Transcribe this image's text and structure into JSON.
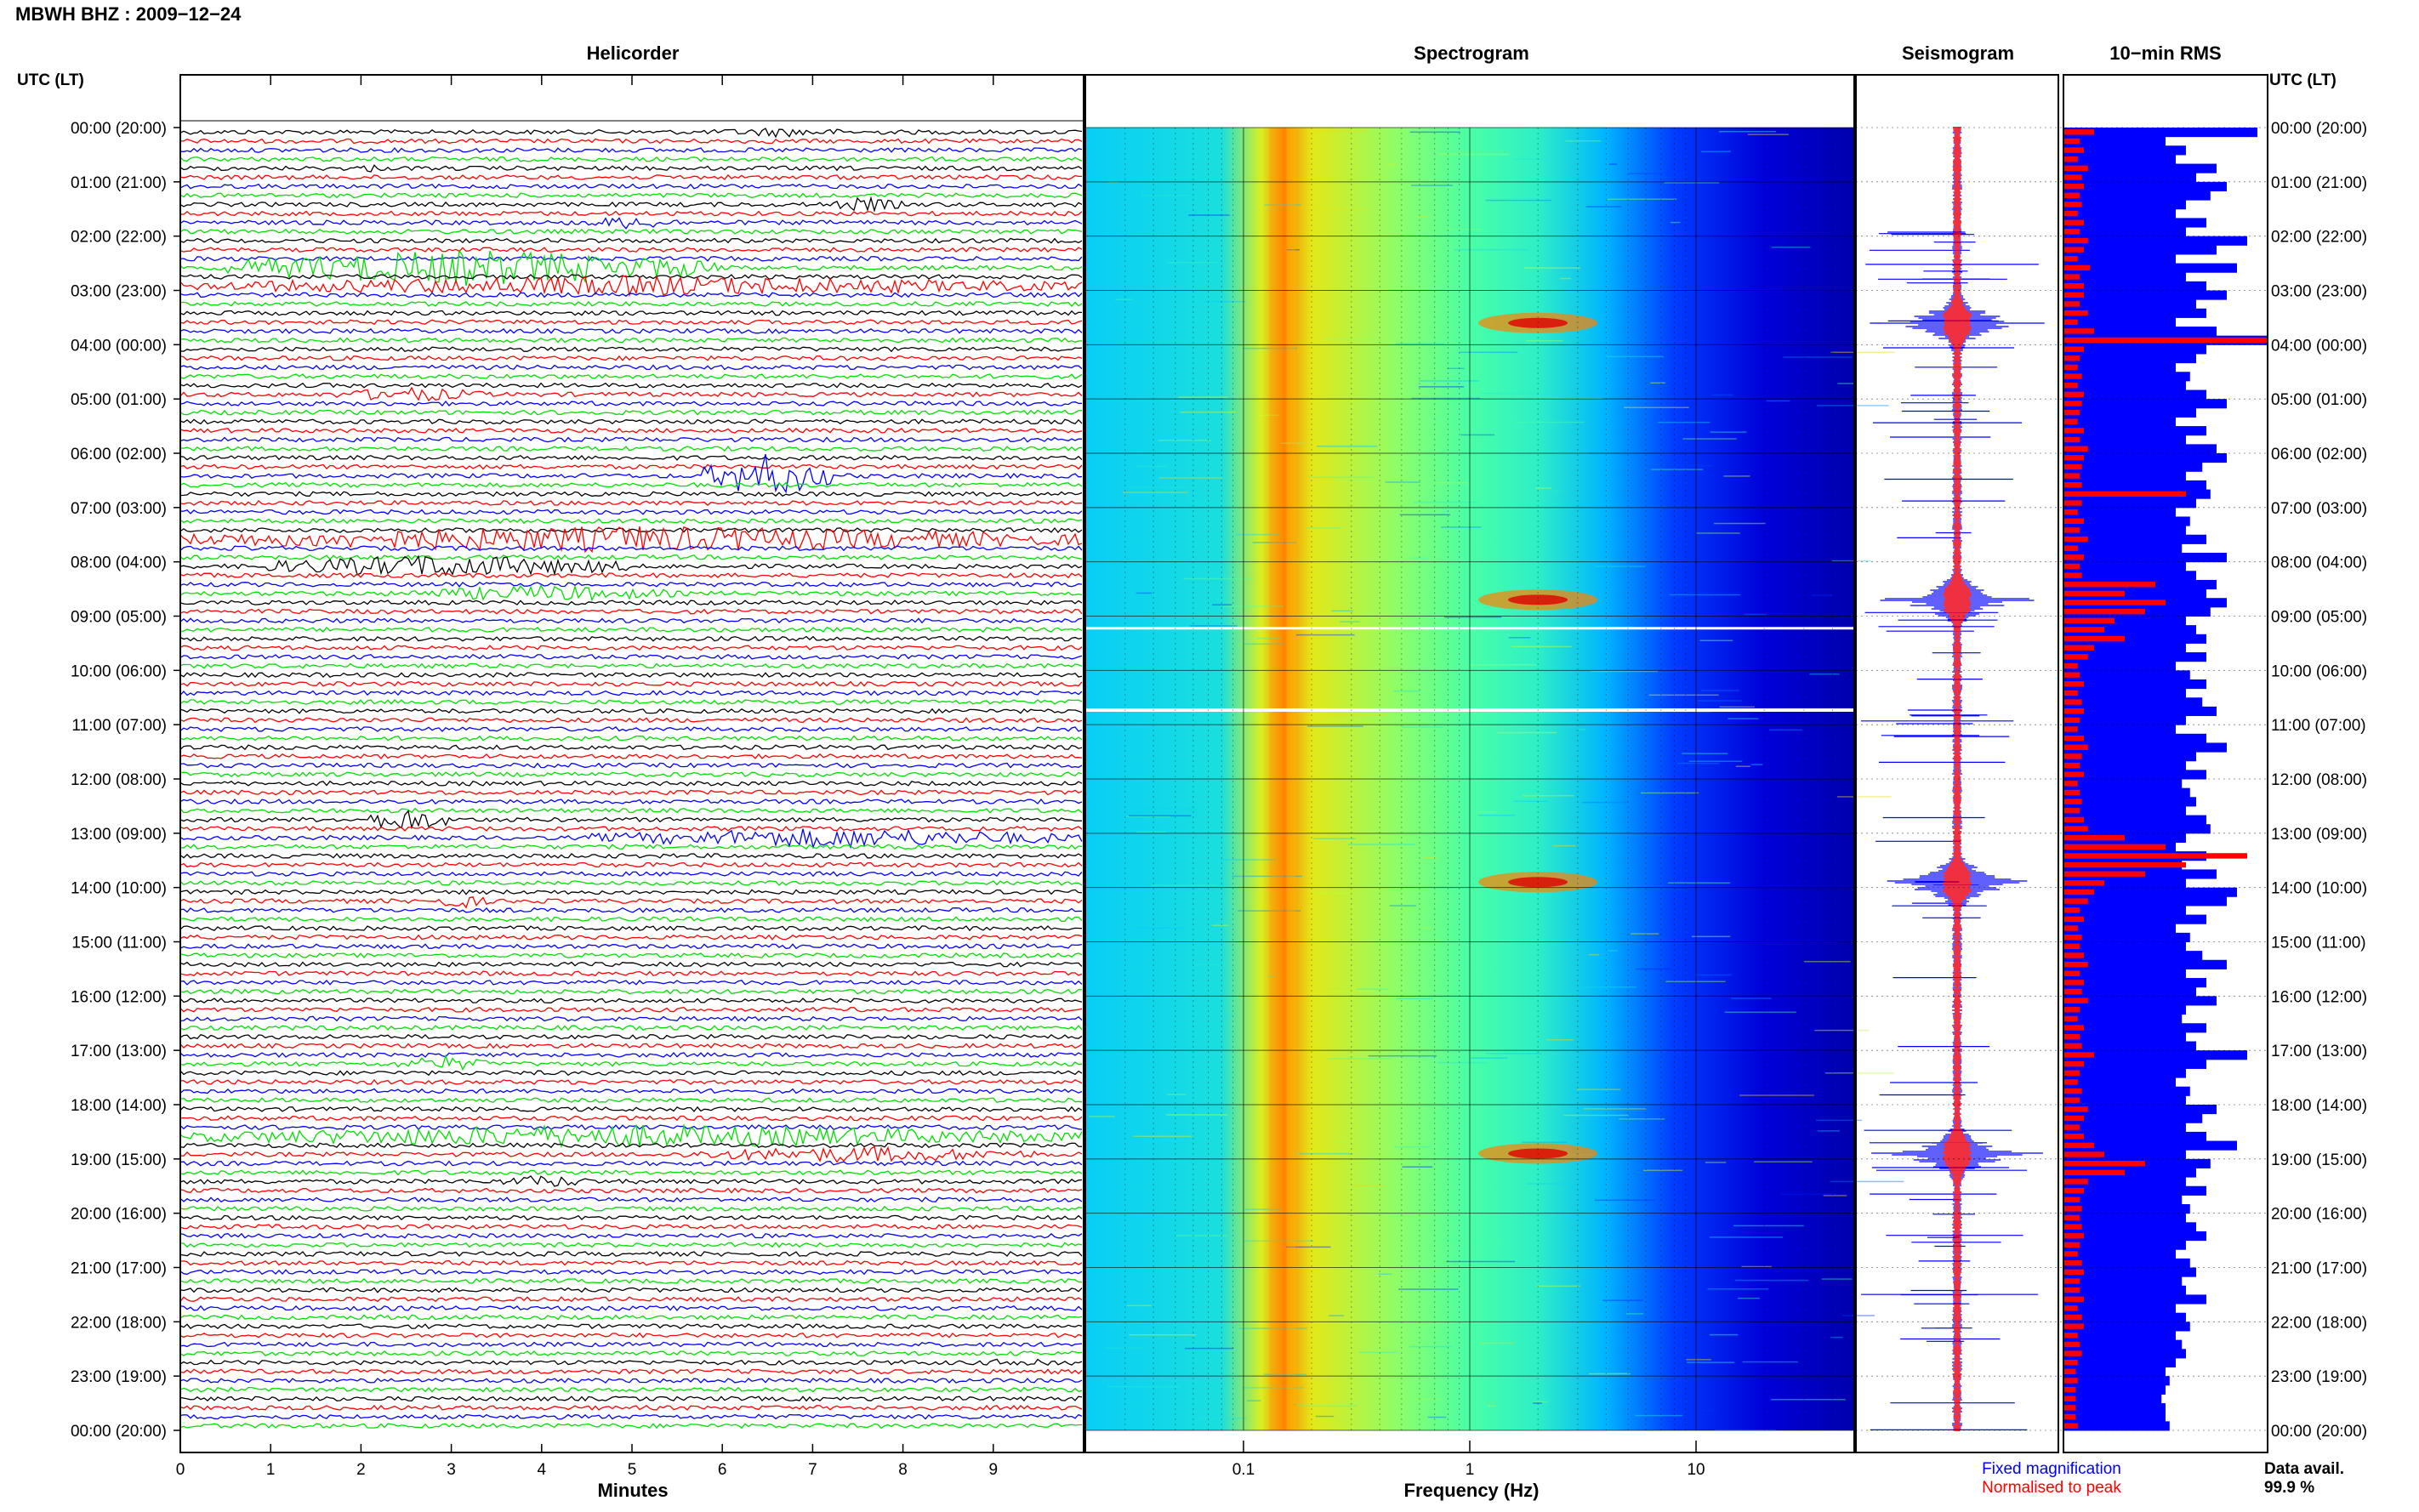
{
  "header": {
    "station_title": "MBWH BHZ : 2009−12−24"
  },
  "panels": {
    "helicorder": "Helicorder",
    "spectrogram": "Spectrogram",
    "seismogram": "Seismogram",
    "rms": "10−min RMS"
  },
  "axis_labels": {
    "time_left": "UTC (LT)",
    "time_right": "UTC (LT)",
    "minutes": "Minutes",
    "frequency": "Frequency (Hz)"
  },
  "legend": {
    "fixed": "Fixed magnification",
    "normalised": "Normalised to peak",
    "data_avail_label": "Data avail.",
    "data_avail_value": "99.9 %"
  },
  "colors": {
    "helicorder_traces": [
      "#000000",
      "#ff0000",
      "#0000ff",
      "#00e000"
    ],
    "fixed_magnification": "#0000ff",
    "normalised_to_peak": "#ff0000",
    "rms_blue": "#0000ff",
    "rms_red": "#ff0000"
  },
  "chart_data": [
    {
      "type": "line",
      "panel": "helicorder",
      "xlabel": "Minutes",
      "x_ticks": [
        "0",
        "1",
        "2",
        "3",
        "4",
        "5",
        "6",
        "7",
        "8",
        "9"
      ],
      "xlim": [
        0,
        10
      ],
      "lines_per_hour": 6,
      "hours": 24,
      "time_ticks_left": [
        "00:00 (20:00)",
        "01:00 (21:00)",
        "02:00 (22:00)",
        "03:00 (23:00)",
        "04:00 (00:00)",
        "05:00 (01:00)",
        "06:00 (02:00)",
        "07:00 (03:00)",
        "08:00 (04:00)",
        "09:00 (05:00)",
        "10:00 (06:00)",
        "11:00 (07:00)",
        "12:00 (08:00)",
        "13:00 (09:00)",
        "14:00 (10:00)",
        "15:00 (11:00)",
        "16:00 (12:00)",
        "17:00 (13:00)",
        "18:00 (14:00)",
        "19:00 (15:00)",
        "20:00 (16:00)",
        "21:00 (17:00)",
        "22:00 (18:00)",
        "23:00 (19:00)",
        "00:00 (20:00)"
      ],
      "events": [
        {
          "line": 0,
          "start_min": 5.8,
          "end_min": 7.5,
          "amp": 6
        },
        {
          "line": 4,
          "start_min": 1.9,
          "end_min": 2.3,
          "amp": 5
        },
        {
          "line": 8,
          "start_min": 7.2,
          "end_min": 8.0,
          "amp": 9
        },
        {
          "line": 10,
          "start_min": 4.4,
          "end_min": 5.6,
          "amp": 8
        },
        {
          "line": 15,
          "start_min": 0.5,
          "end_min": 6.0,
          "amp": 22
        },
        {
          "line": 17,
          "start_min": 0.0,
          "end_min": 10.0,
          "amp": 12
        },
        {
          "line": 29,
          "start_min": 1.7,
          "end_min": 3.4,
          "amp": 9
        },
        {
          "line": 38,
          "start_min": 5.8,
          "end_min": 7.2,
          "amp": 26
        },
        {
          "line": 45,
          "start_min": 0.0,
          "end_min": 10.0,
          "amp": 16
        },
        {
          "line": 48,
          "start_min": 0.8,
          "end_min": 5.0,
          "amp": 14
        },
        {
          "line": 51,
          "start_min": 2.5,
          "end_min": 5.5,
          "amp": 10
        },
        {
          "line": 76,
          "start_min": 2.0,
          "end_min": 3.0,
          "amp": 14
        },
        {
          "line": 78,
          "start_min": 4.5,
          "end_min": 10.0,
          "amp": 12
        },
        {
          "line": 85,
          "start_min": 2.8,
          "end_min": 3.4,
          "amp": 9
        },
        {
          "line": 103,
          "start_min": 2.4,
          "end_min": 3.4,
          "amp": 10
        },
        {
          "line": 111,
          "start_min": 0.0,
          "end_min": 10.0,
          "amp": 14
        },
        {
          "line": 113,
          "start_min": 5.5,
          "end_min": 9.5,
          "amp": 10
        },
        {
          "line": 116,
          "start_min": 3.5,
          "end_min": 4.6,
          "amp": 8
        },
        {
          "line": 136,
          "start_min": 8.8,
          "end_min": 10.0,
          "amp": 6
        }
      ]
    },
    {
      "type": "heatmap",
      "panel": "spectrogram",
      "xlabel": "Frequency (Hz)",
      "x_scale": "log",
      "xlim": [
        0.02,
        50
      ],
      "x_ticks": [
        "0.1",
        "1",
        "10"
      ],
      "band_features": [
        {
          "freq_hz": 0.15,
          "note": "microseism band, warm colors"
        },
        {
          "freq_hz": 2.0,
          "note": "events near 04:00, 09:00, 14:00, 19:00"
        }
      ]
    },
    {
      "type": "line",
      "panel": "seismogram",
      "series": [
        {
          "name": "Fixed magnification",
          "color": "#0000ff"
        },
        {
          "name": "Normalised to peak",
          "color": "#ff0000"
        }
      ],
      "peaks_hours": [
        3.6,
        8.7,
        13.9,
        18.9
      ]
    },
    {
      "type": "bar",
      "panel": "rms",
      "orientation": "horizontal",
      "bins_per_hour": 6,
      "blue_values": [
        0.95,
        0.5,
        0.6,
        0.55,
        0.75,
        0.65,
        0.8,
        0.72,
        0.6,
        0.55,
        0.7,
        0.6,
        0.9,
        0.75,
        0.55,
        0.85,
        0.6,
        0.7,
        0.8,
        0.65,
        0.7,
        0.55,
        0.75,
        1.0,
        0.7,
        0.65,
        0.55,
        0.62,
        0.6,
        0.7,
        0.8,
        0.65,
        0.55,
        0.7,
        0.6,
        0.75,
        0.8,
        0.68,
        0.6,
        0.7,
        0.72,
        0.65,
        0.55,
        0.62,
        0.6,
        0.7,
        0.58,
        0.8,
        0.6,
        0.65,
        0.75,
        0.7,
        0.8,
        0.72,
        0.6,
        0.65,
        0.7,
        0.6,
        0.7,
        0.55,
        0.62,
        0.7,
        0.6,
        0.68,
        0.75,
        0.6,
        0.55,
        0.7,
        0.8,
        0.65,
        0.6,
        0.7,
        0.58,
        0.62,
        0.65,
        0.6,
        0.7,
        0.72,
        0.6,
        0.55,
        0.7,
        0.58,
        0.75,
        0.6,
        0.85,
        0.8,
        0.6,
        0.7,
        0.55,
        0.62,
        0.6,
        0.68,
        0.8,
        0.6,
        0.7,
        0.65,
        0.75,
        0.6,
        0.58,
        0.7,
        0.6,
        0.65,
        0.9,
        0.7,
        0.6,
        0.55,
        0.62,
        0.6,
        0.75,
        0.68,
        0.6,
        0.7,
        0.85,
        0.6,
        0.72,
        0.65,
        0.6,
        0.7,
        0.58,
        0.62,
        0.6,
        0.65,
        0.7,
        0.6,
        0.55,
        0.62,
        0.65,
        0.58,
        0.6,
        0.7,
        0.55,
        0.6,
        0.62,
        0.55,
        0.58,
        0.6,
        0.55,
        0.5,
        0.52,
        0.5,
        0.48,
        0.5,
        0.5,
        0.52
      ],
      "red_values": [
        0.15,
        0.08,
        0.1,
        0.07,
        0.12,
        0.09,
        0.1,
        0.08,
        0.09,
        0.07,
        0.1,
        0.08,
        0.12,
        0.1,
        0.07,
        0.13,
        0.08,
        0.1,
        0.1,
        0.08,
        0.12,
        0.07,
        0.15,
        1.0,
        0.1,
        0.08,
        0.07,
        0.09,
        0.07,
        0.1,
        0.09,
        0.08,
        0.07,
        0.1,
        0.08,
        0.12,
        0.1,
        0.09,
        0.08,
        0.09,
        0.6,
        0.09,
        0.07,
        0.1,
        0.08,
        0.12,
        0.07,
        0.1,
        0.08,
        0.09,
        0.45,
        0.3,
        0.5,
        0.4,
        0.25,
        0.2,
        0.3,
        0.15,
        0.12,
        0.07,
        0.08,
        0.1,
        0.07,
        0.09,
        0.1,
        0.08,
        0.07,
        0.1,
        0.12,
        0.09,
        0.08,
        0.1,
        0.07,
        0.08,
        0.09,
        0.08,
        0.1,
        0.12,
        0.3,
        0.5,
        0.9,
        0.6,
        0.4,
        0.2,
        0.15,
        0.12,
        0.08,
        0.1,
        0.07,
        0.09,
        0.08,
        0.1,
        0.12,
        0.08,
        0.1,
        0.09,
        0.12,
        0.08,
        0.07,
        0.1,
        0.08,
        0.09,
        0.15,
        0.1,
        0.08,
        0.07,
        0.09,
        0.08,
        0.12,
        0.1,
        0.08,
        0.1,
        0.15,
        0.2,
        0.4,
        0.3,
        0.12,
        0.1,
        0.08,
        0.09,
        0.08,
        0.09,
        0.1,
        0.08,
        0.07,
        0.09,
        0.1,
        0.08,
        0.08,
        0.1,
        0.07,
        0.09,
        0.1,
        0.07,
        0.08,
        0.09,
        0.07,
        0.06,
        0.07,
        0.06,
        0.06,
        0.06,
        0.06,
        0.07
      ]
    }
  ]
}
